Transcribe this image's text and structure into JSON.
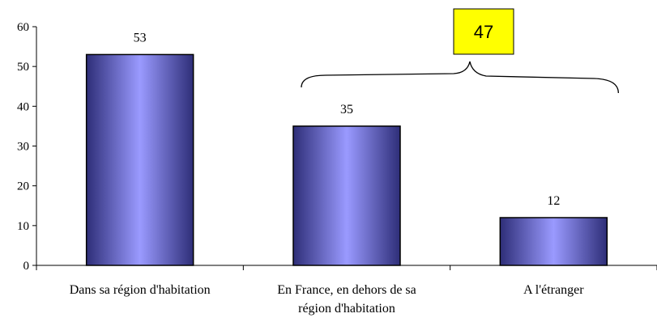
{
  "chart_data": {
    "type": "bar",
    "categories": [
      [
        "Dans sa région d'habitation"
      ],
      [
        "En France, en dehors de sa",
        "région d'habitation"
      ],
      [
        "A l'étranger"
      ]
    ],
    "values": [
      53,
      35,
      12
    ],
    "data_labels": [
      "53",
      "35",
      "12"
    ],
    "ylim": [
      0,
      60
    ],
    "yticks": [
      0,
      10,
      20,
      30,
      40,
      50,
      60
    ],
    "grid": false,
    "legend": "none",
    "bar_gradient": [
      "#2e2e78",
      "#9a9aff",
      "#2e2e78"
    ],
    "callout": {
      "label": "47",
      "background": "#ffff00",
      "spans_categories": [
        1,
        2
      ]
    }
  }
}
